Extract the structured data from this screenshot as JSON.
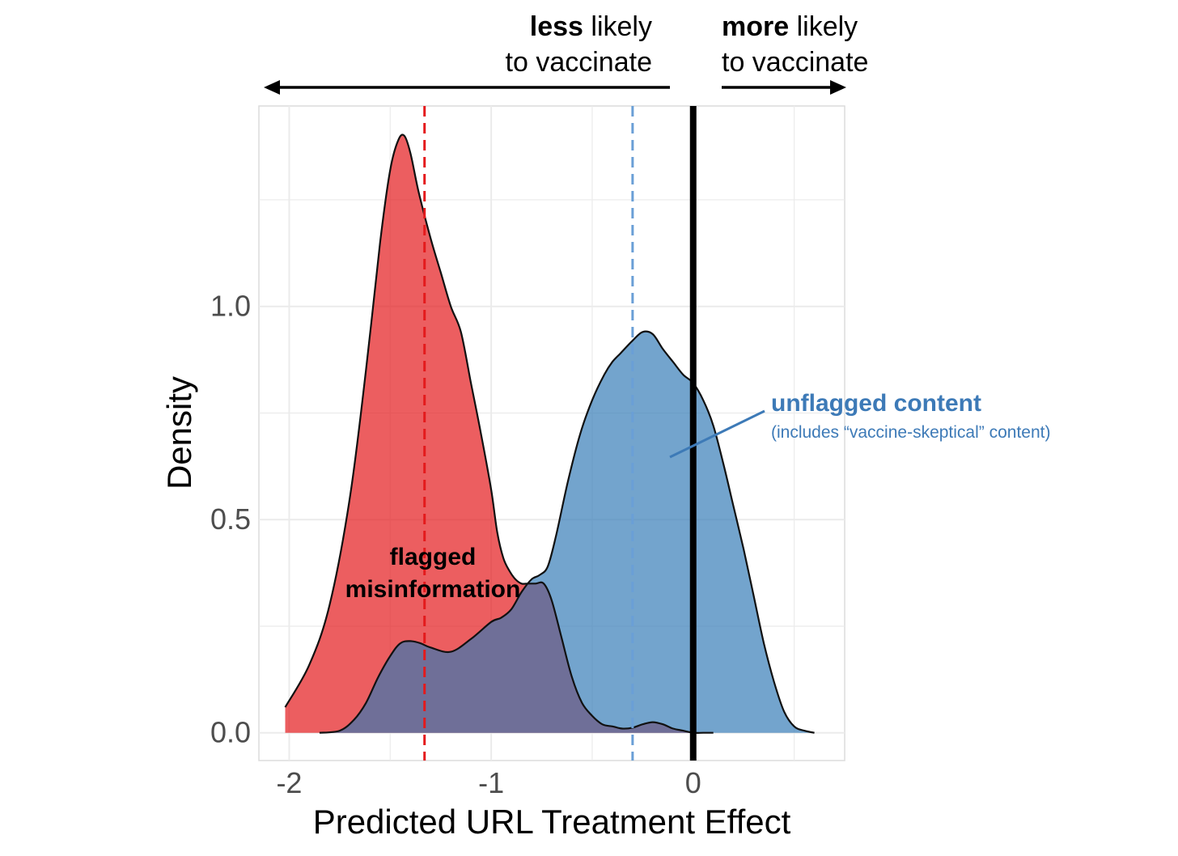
{
  "chart_data": {
    "type": "area",
    "subtype": "density",
    "xlabel": "Predicted URL Treatment Effect",
    "ylabel": "Density",
    "xlim": [
      -2.15,
      0.75
    ],
    "ylim": [
      -0.065,
      1.47
    ],
    "x_ticks": [
      -2,
      -1,
      0
    ],
    "x_tick_labels": [
      "-2",
      "-1",
      "0"
    ],
    "y_ticks": [
      0,
      0.5,
      1.0
    ],
    "y_tick_labels": [
      "0.0",
      "0.5",
      "1.0"
    ],
    "grid": true,
    "colors": {
      "flagged_fill": "#e41a1c",
      "unflagged_fill": "#377eb8",
      "overlap": "#6f6f98",
      "unflagged_label": "#3d7ab7",
      "flagged_mean_line": "#e41a1c",
      "unflagged_mean_line": "#6a9fd6",
      "zero_line": "#000000"
    },
    "series": [
      {
        "key": "flagged",
        "x": [
          -2.02,
          -1.9,
          -1.8,
          -1.7,
          -1.62,
          -1.55,
          -1.5,
          -1.46,
          -1.43,
          -1.4,
          -1.36,
          -1.3,
          -1.25,
          -1.2,
          -1.15,
          -1.1,
          -1.05,
          -1.0,
          -0.97,
          -0.94,
          -0.91,
          -0.88,
          -0.85,
          -0.82,
          -0.78,
          -0.74,
          -0.7,
          -0.65,
          -0.6,
          -0.55,
          -0.5,
          -0.45,
          -0.4,
          -0.35,
          -0.3,
          -0.25,
          -0.2,
          -0.15,
          -0.1,
          -0.05,
          0.0,
          0.05,
          0.1
        ],
        "y": [
          0.06,
          0.16,
          0.3,
          0.55,
          0.85,
          1.15,
          1.32,
          1.39,
          1.4,
          1.36,
          1.27,
          1.16,
          1.08,
          1.0,
          0.94,
          0.82,
          0.7,
          0.57,
          0.47,
          0.41,
          0.38,
          0.36,
          0.35,
          0.35,
          0.35,
          0.35,
          0.31,
          0.22,
          0.13,
          0.07,
          0.04,
          0.02,
          0.015,
          0.01,
          0.012,
          0.02,
          0.025,
          0.02,
          0.01,
          0.005,
          0.0,
          0.0,
          0.0
        ]
      },
      {
        "key": "unflagged",
        "x": [
          -1.85,
          -1.75,
          -1.68,
          -1.62,
          -1.56,
          -1.5,
          -1.45,
          -1.4,
          -1.35,
          -1.3,
          -1.2,
          -1.1,
          -1.0,
          -0.95,
          -0.9,
          -0.85,
          -0.8,
          -0.76,
          -0.72,
          -0.68,
          -0.62,
          -0.56,
          -0.5,
          -0.44,
          -0.4,
          -0.36,
          -0.3,
          -0.25,
          -0.2,
          -0.15,
          -0.1,
          -0.05,
          0.0,
          0.05,
          0.1,
          0.15,
          0.2,
          0.25,
          0.3,
          0.35,
          0.4,
          0.45,
          0.5,
          0.55,
          0.6
        ],
        "y": [
          0.0,
          0.005,
          0.03,
          0.07,
          0.13,
          0.18,
          0.21,
          0.215,
          0.21,
          0.2,
          0.19,
          0.22,
          0.26,
          0.27,
          0.29,
          0.33,
          0.36,
          0.37,
          0.39,
          0.46,
          0.59,
          0.7,
          0.78,
          0.84,
          0.87,
          0.89,
          0.92,
          0.94,
          0.935,
          0.9,
          0.87,
          0.84,
          0.82,
          0.78,
          0.72,
          0.63,
          0.53,
          0.43,
          0.32,
          0.21,
          0.12,
          0.05,
          0.015,
          0.005,
          0.0
        ]
      }
    ],
    "mean_lines": [
      {
        "key": "flagged",
        "x": -1.33,
        "style": "dashed"
      },
      {
        "key": "unflagged",
        "x": -0.3,
        "style": "dashed"
      }
    ],
    "reference_line": {
      "x": 0,
      "style": "solid-thick"
    },
    "annotations": {
      "flagged_line1": "flagged",
      "flagged_line2": "misinformation",
      "unflagged_title": "unflagged content",
      "unflagged_sub": "(includes “vaccine-skeptical” content)",
      "less_bold": "less",
      "less_rest": " likely",
      "less_line2": "to vaccinate",
      "more_bold": "more",
      "more_rest": " likely",
      "more_line2": "to vaccinate"
    }
  }
}
